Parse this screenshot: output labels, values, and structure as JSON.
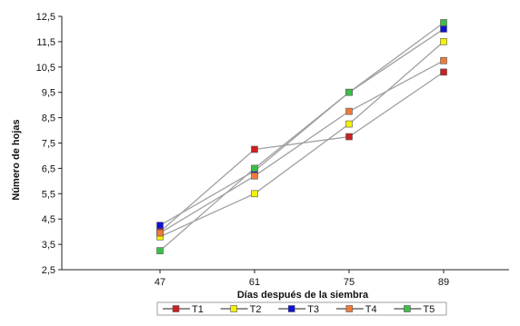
{
  "chart_data": {
    "type": "line",
    "title": "",
    "xlabel": "Días después de la siembra",
    "ylabel": "Número de hojas",
    "categories": [
      "47",
      "61",
      "75",
      "89"
    ],
    "yticks": [
      "2,5",
      "3,5",
      "4,5",
      "5,5",
      "6,5",
      "7,5",
      "8,5",
      "9,5",
      "10,5",
      "11,5",
      "12,5"
    ],
    "ylim": [
      2.5,
      12.5
    ],
    "grid": false,
    "legend_position": "bottom",
    "line_color": "#a0a0a0",
    "series": [
      {
        "name": "T1",
        "color": "#cc1f1f",
        "values": [
          4.0,
          7.25,
          7.75,
          10.3
        ]
      },
      {
        "name": "T2",
        "color": "#f2f200",
        "values": [
          3.8,
          5.5,
          8.25,
          11.5
        ]
      },
      {
        "name": "T3",
        "color": "#1010d8",
        "values": [
          4.25,
          6.4,
          9.5,
          12.0
        ]
      },
      {
        "name": "T4",
        "color": "#ee7a3a",
        "values": [
          3.95,
          6.2,
          8.75,
          10.75
        ]
      },
      {
        "name": "T5",
        "color": "#3cbf48",
        "values": [
          3.25,
          6.5,
          9.5,
          12.25
        ]
      }
    ]
  }
}
